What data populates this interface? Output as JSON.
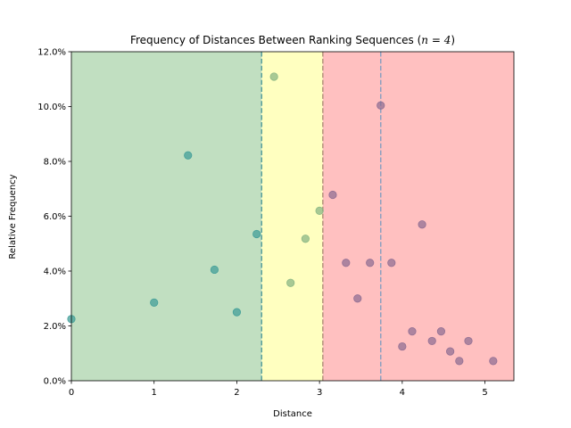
{
  "chart_data": {
    "type": "scatter",
    "title": "Frequency of Distances Between Ranking Sequences (",
    "title_math": "n = 4",
    "title_suffix": ")",
    "xlabel": "Distance",
    "ylabel": "Relative Frequency",
    "xlim": [
      0,
      5.35
    ],
    "ylim": [
      0,
      0.12
    ],
    "x_ticks": [
      0,
      1,
      2,
      3,
      4,
      5
    ],
    "x_tick_labels": [
      "0",
      "1",
      "2",
      "3",
      "4",
      "5"
    ],
    "y_ticks": [
      0,
      0.02,
      0.04,
      0.06,
      0.08,
      0.1,
      0.12
    ],
    "y_tick_labels": [
      "0.0%",
      "2.0%",
      "4.0%",
      "6.0%",
      "8.0%",
      "10.0%",
      "12.0%"
    ],
    "grid": false,
    "regions": [
      {
        "from": 0,
        "to": 2.3,
        "color": "#c1dfc1"
      },
      {
        "from": 2.3,
        "to": 3.04,
        "color": "#ffffc0"
      },
      {
        "from": 3.04,
        "to": 5.35,
        "color": "#ffc0c0"
      }
    ],
    "thresholds": [
      {
        "x": 2.3,
        "color": "#5a9f9a"
      },
      {
        "x": 3.04,
        "color": "#b4937b"
      },
      {
        "x": 3.74,
        "color": "#8a9fc0"
      }
    ],
    "points": [
      {
        "x": 0.0,
        "y": 0.0225,
        "color": "#3e9c97"
      },
      {
        "x": 1.0,
        "y": 0.0285,
        "color": "#3e9c97"
      },
      {
        "x": 1.41,
        "y": 0.0822,
        "color": "#3e9c97"
      },
      {
        "x": 1.73,
        "y": 0.0405,
        "color": "#3e9c97"
      },
      {
        "x": 2.0,
        "y": 0.025,
        "color": "#3e9c97"
      },
      {
        "x": 2.24,
        "y": 0.0535,
        "color": "#3e9c97"
      },
      {
        "x": 2.45,
        "y": 0.1109,
        "color": "#86b482"
      },
      {
        "x": 2.65,
        "y": 0.0357,
        "color": "#86b482"
      },
      {
        "x": 2.83,
        "y": 0.0518,
        "color": "#86b482"
      },
      {
        "x": 3.0,
        "y": 0.062,
        "color": "#86b482"
      },
      {
        "x": 3.16,
        "y": 0.0678,
        "color": "#8d6c91"
      },
      {
        "x": 3.32,
        "y": 0.043,
        "color": "#8d6c91"
      },
      {
        "x": 3.46,
        "y": 0.03,
        "color": "#8d6c91"
      },
      {
        "x": 3.61,
        "y": 0.043,
        "color": "#8d6c91"
      },
      {
        "x": 3.74,
        "y": 0.1004,
        "color": "#8d6c91"
      },
      {
        "x": 3.87,
        "y": 0.043,
        "color": "#8d6c91"
      },
      {
        "x": 4.0,
        "y": 0.0125,
        "color": "#8d6c91"
      },
      {
        "x": 4.12,
        "y": 0.018,
        "color": "#8d6c91"
      },
      {
        "x": 4.24,
        "y": 0.057,
        "color": "#8d6c91"
      },
      {
        "x": 4.36,
        "y": 0.0145,
        "color": "#8d6c91"
      },
      {
        "x": 4.47,
        "y": 0.018,
        "color": "#8d6c91"
      },
      {
        "x": 4.58,
        "y": 0.0107,
        "color": "#8d6c91"
      },
      {
        "x": 4.69,
        "y": 0.0072,
        "color": "#8d6c91"
      },
      {
        "x": 4.8,
        "y": 0.0145,
        "color": "#8d6c91"
      },
      {
        "x": 5.1,
        "y": 0.0072,
        "color": "#8d6c91"
      }
    ]
  }
}
